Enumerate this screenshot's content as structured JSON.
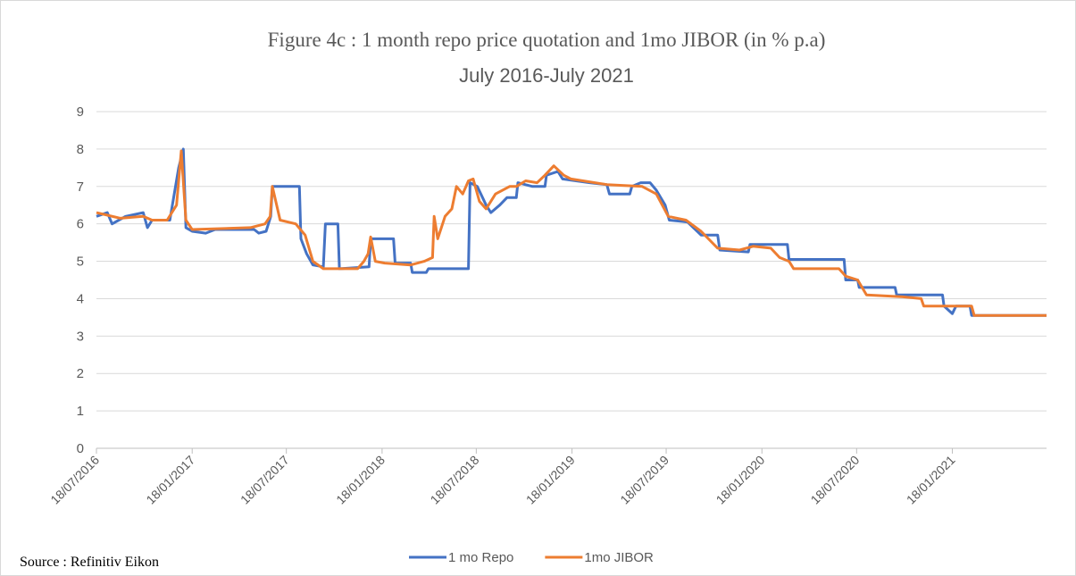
{
  "chart_data": {
    "type": "line",
    "title": "Figure 4c :  1 month repo price quotation and 1mo JIBOR (in % p.a)",
    "subtitle": "July 2016-July 2021",
    "source": "Source : Refinitiv Eikon",
    "xlim": [
      "2016-07-18",
      "2021-07-18"
    ],
    "xticks": [
      {
        "value": "2016-07-18",
        "label": "18/07/2016"
      },
      {
        "value": "2017-01-18",
        "label": "18/01/2017"
      },
      {
        "value": "2017-07-18",
        "label": "18/07/2017"
      },
      {
        "value": "2018-01-18",
        "label": "18/01/2018"
      },
      {
        "value": "2018-07-18",
        "label": "18/07/2018"
      },
      {
        "value": "2019-01-18",
        "label": "18/01/2019"
      },
      {
        "value": "2019-07-18",
        "label": "18/07/2019"
      },
      {
        "value": "2020-01-18",
        "label": "18/01/2020"
      },
      {
        "value": "2020-07-18",
        "label": "18/07/2020"
      },
      {
        "value": "2021-01-18",
        "label": "18/01/2021"
      }
    ],
    "ylim": [
      0,
      9
    ],
    "yticks": [
      0,
      1,
      2,
      3,
      4,
      5,
      6,
      7,
      8,
      9
    ],
    "grid": true,
    "legend": "bottom",
    "series": [
      {
        "name": "1 mo Repo",
        "color": "#4472c4",
        "x": [
          "2016-07-18",
          "2016-08-08",
          "2016-08-17",
          "2016-09-12",
          "2016-10-16",
          "2016-10-24",
          "2016-11-02",
          "2016-12-06",
          "2016-12-23",
          "2017-01-01",
          "2017-01-06",
          "2017-01-18",
          "2017-02-13",
          "2017-03-03",
          "2017-05-17",
          "2017-05-26",
          "2017-06-09",
          "2017-06-18",
          "2017-06-21",
          "2017-08-12",
          "2017-08-15",
          "2017-08-26",
          "2017-09-07",
          "2017-09-27",
          "2017-10-01",
          "2017-10-25",
          "2017-10-28",
          "2017-12-24",
          "2017-12-27",
          "2018-02-09",
          "2018-02-12",
          "2018-03-14",
          "2018-03-17",
          "2018-04-13",
          "2018-04-17",
          "2018-07-03",
          "2018-07-06",
          "2018-07-20",
          "2018-08-06",
          "2018-08-15",
          "2018-09-01",
          "2018-09-15",
          "2018-10-03",
          "2018-10-06",
          "2018-11-03",
          "2018-11-27",
          "2018-11-30",
          "2018-12-22",
          "2018-12-31",
          "2019-02-21",
          "2019-03-26",
          "2019-03-31",
          "2019-05-09",
          "2019-05-13",
          "2019-05-30",
          "2019-06-17",
          "2019-06-29",
          "2019-07-16",
          "2019-07-24",
          "2019-08-28",
          "2019-09-23",
          "2019-10-25",
          "2019-10-29",
          "2019-12-23",
          "2019-12-26",
          "2020-03-07",
          "2020-03-10",
          "2020-06-24",
          "2020-06-27",
          "2020-07-20",
          "2020-07-23",
          "2020-09-30",
          "2020-10-03",
          "2020-12-30",
          "2021-01-02",
          "2021-01-18",
          "2021-01-25",
          "2021-02-21",
          "2021-02-24",
          "2021-07-18"
        ],
        "values": [
          6.2,
          6.3,
          6.0,
          6.2,
          6.3,
          5.9,
          6.1,
          6.1,
          7.5,
          8.0,
          5.9,
          5.8,
          5.75,
          5.85,
          5.85,
          5.75,
          5.8,
          6.2,
          7.0,
          7.0,
          5.6,
          5.2,
          4.9,
          4.85,
          6.0,
          6.0,
          4.8,
          4.85,
          5.6,
          5.6,
          4.95,
          4.95,
          4.7,
          4.7,
          4.8,
          4.8,
          7.1,
          7.0,
          6.5,
          6.3,
          6.5,
          6.7,
          6.7,
          7.1,
          7.0,
          7.0,
          7.3,
          7.4,
          7.2,
          7.1,
          7.05,
          6.8,
          6.8,
          7.0,
          7.1,
          7.1,
          6.9,
          6.5,
          6.1,
          6.05,
          5.7,
          5.7,
          5.3,
          5.25,
          5.45,
          5.45,
          5.05,
          5.05,
          4.5,
          4.5,
          4.3,
          4.3,
          4.1,
          4.1,
          3.8,
          3.6,
          3.8,
          3.8,
          3.55,
          3.55
        ]
      },
      {
        "name": "1mo JIBOR",
        "color": "#ed7d31",
        "x": [
          "2016-07-18",
          "2016-09-02",
          "2016-10-16",
          "2016-11-02",
          "2016-12-01",
          "2016-12-19",
          "2016-12-28",
          "2017-01-06",
          "2017-01-18",
          "2017-05-10",
          "2017-06-07",
          "2017-06-17",
          "2017-06-21",
          "2017-07-06",
          "2017-08-05",
          "2017-08-23",
          "2017-09-07",
          "2017-09-27",
          "2017-12-02",
          "2017-12-14",
          "2017-12-22",
          "2017-12-27",
          "2018-01-05",
          "2018-01-23",
          "2018-03-14",
          "2018-04-09",
          "2018-04-25",
          "2018-04-28",
          "2018-05-05",
          "2018-05-19",
          "2018-06-01",
          "2018-06-10",
          "2018-06-22",
          "2018-07-03",
          "2018-07-12",
          "2018-07-24",
          "2018-08-06",
          "2018-08-24",
          "2018-09-20",
          "2018-10-03",
          "2018-10-21",
          "2018-11-12",
          "2018-11-27",
          "2018-12-14",
          "2019-01-02",
          "2019-01-16",
          "2019-03-26",
          "2019-06-02",
          "2019-06-29",
          "2019-07-22",
          "2019-08-25",
          "2019-09-23",
          "2019-10-25",
          "2019-12-06",
          "2020-01-01",
          "2020-02-04",
          "2020-02-21",
          "2020-03-10",
          "2020-03-19",
          "2020-06-14",
          "2020-06-27",
          "2020-07-20",
          "2020-08-06",
          "2020-10-15",
          "2020-11-19",
          "2020-11-24",
          "2021-02-24",
          "2021-03-01",
          "2021-07-18"
        ],
        "values": [
          6.3,
          6.15,
          6.2,
          6.1,
          6.1,
          6.5,
          7.95,
          6.1,
          5.85,
          5.9,
          6.0,
          6.2,
          7.0,
          6.1,
          6.0,
          5.7,
          5.0,
          4.8,
          4.8,
          5.0,
          5.2,
          5.65,
          5.0,
          4.95,
          4.9,
          5.0,
          5.1,
          6.2,
          5.6,
          6.2,
          6.4,
          7.0,
          6.8,
          7.15,
          7.2,
          6.6,
          6.4,
          6.8,
          7.0,
          7.0,
          7.15,
          7.1,
          7.3,
          7.55,
          7.3,
          7.2,
          7.05,
          7.0,
          6.8,
          6.2,
          6.1,
          5.8,
          5.35,
          5.3,
          5.4,
          5.35,
          5.1,
          5.0,
          4.8,
          4.8,
          4.6,
          4.5,
          4.1,
          4.05,
          4.0,
          3.8,
          3.8,
          3.55,
          3.55
        ]
      }
    ]
  }
}
